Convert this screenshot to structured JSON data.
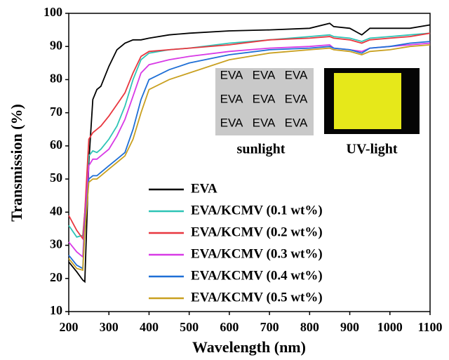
{
  "chart_data": {
    "type": "line",
    "x_label": "Wavelength (nm)",
    "y_label": "Transmission (%)",
    "xlim": [
      200,
      1100
    ],
    "ylim": [
      10,
      100
    ],
    "xticks": [
      200,
      300,
      400,
      500,
      600,
      700,
      800,
      900,
      1000,
      1100
    ],
    "yticks": [
      10,
      20,
      30,
      40,
      50,
      60,
      70,
      80,
      90,
      100
    ],
    "x": [
      200,
      220,
      235,
      240,
      250,
      260,
      270,
      280,
      300,
      320,
      340,
      360,
      380,
      400,
      450,
      500,
      600,
      700,
      800,
      850,
      860,
      900,
      930,
      950,
      1000,
      1050,
      1100
    ],
    "series": [
      {
        "name": "EVA",
        "color": "#000000",
        "values": [
          25,
          22,
          19.5,
          19,
          55,
          74,
          77,
          78,
          84,
          89,
          91,
          92,
          92,
          92.5,
          93.5,
          94,
          94.7,
          95,
          95.5,
          97,
          96,
          95.5,
          93.5,
          95.5,
          95.5,
          95.5,
          96.5
        ]
      },
      {
        "name": "EVA/KCMV (0.1 wt%)",
        "color": "#2ec4b6",
        "values": [
          36,
          32.5,
          33,
          40,
          57,
          58.5,
          58,
          59,
          62,
          66,
          72,
          80,
          86,
          88,
          89,
          89.5,
          91,
          92,
          93,
          93.5,
          93,
          92.5,
          91.5,
          92.5,
          93,
          93.5,
          94
        ]
      },
      {
        "name": "EVA/KCMV (0.2 wt%)",
        "color": "#e8373f",
        "values": [
          39,
          34.5,
          32,
          40,
          62,
          64,
          65,
          66,
          69,
          72.5,
          76,
          82,
          87,
          88.5,
          89,
          89.5,
          90.5,
          92,
          92.5,
          93,
          92.5,
          92,
          91,
          92,
          92.5,
          93,
          94
        ]
      },
      {
        "name": "EVA/KCMV (0.3 wt%)",
        "color": "#d83ae6",
        "values": [
          31,
          28,
          26.5,
          38,
          54,
          56,
          56,
          57,
          59,
          63,
          68,
          75,
          82,
          84.5,
          86,
          87,
          88.5,
          89.5,
          90,
          90.5,
          89.5,
          89,
          88.5,
          89.5,
          90,
          90.5,
          91
        ]
      },
      {
        "name": "EVA/KCMV (0.4 wt%)",
        "color": "#1f6fd6",
        "values": [
          27,
          24,
          23,
          35,
          50,
          51,
          51,
          52,
          54,
          56,
          58,
          65,
          74,
          80,
          83,
          85,
          87.5,
          89,
          89.5,
          90,
          89.5,
          89,
          88,
          89.5,
          90,
          91,
          91.5
        ]
      },
      {
        "name": "EVA/KCMV (0.5 wt%)",
        "color": "#c9a020",
        "values": [
          26,
          23,
          22.5,
          34,
          49,
          50,
          50,
          51,
          53,
          55,
          57,
          62,
          70,
          77,
          80,
          82,
          86,
          88,
          89,
          89.5,
          89,
          88.5,
          87.5,
          88.5,
          89,
          90,
          90.5
        ]
      }
    ],
    "inset_text": "EVA",
    "annotations": [
      "sunlight",
      "UV-light"
    ]
  }
}
